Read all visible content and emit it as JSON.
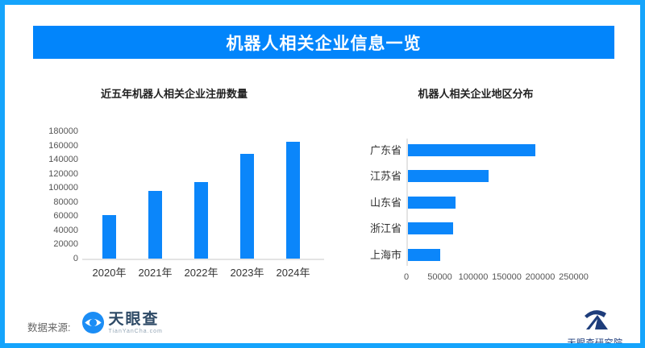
{
  "header": {
    "title": "机器人相关企业信息一览"
  },
  "colors": {
    "border": "#15a4fc",
    "header_bg": "#0285fb",
    "bar": "#0b86fa",
    "axis_line": "#e4e4e4"
  },
  "chart_data": [
    {
      "type": "bar",
      "title": "近五年机器人相关企业注册数量",
      "categories": [
        "2020年",
        "2021年",
        "2022年",
        "2023年",
        "2024年"
      ],
      "values": [
        62000,
        96000,
        108000,
        148000,
        165000
      ],
      "xlabel": "",
      "ylabel": "",
      "ylim": [
        0,
        180000
      ],
      "yticks": [
        0,
        20000,
        40000,
        60000,
        80000,
        100000,
        120000,
        140000,
        160000,
        180000
      ],
      "grid": false,
      "legend": false,
      "bar_color": "#0b86fa"
    },
    {
      "type": "bar-horizontal",
      "title": "机器人相关企业地区分布",
      "categories": [
        "广东省",
        "江苏省",
        "山东省",
        "浙江省",
        "上海市"
      ],
      "values": [
        190000,
        120000,
        71000,
        68000,
        48000
      ],
      "xlabel": "",
      "ylabel": "",
      "xlim": [
        0,
        250000
      ],
      "xticks": [
        0,
        50000,
        100000,
        150000,
        200000,
        250000
      ],
      "grid": false,
      "legend": false,
      "bar_color": "#0b86fa"
    }
  ],
  "footer": {
    "source_label": "数据来源:",
    "tyc_logo_text": "天眼查",
    "tyc_logo_sub": "TianYanCha.com",
    "institute_label": "天眼查研究院"
  }
}
